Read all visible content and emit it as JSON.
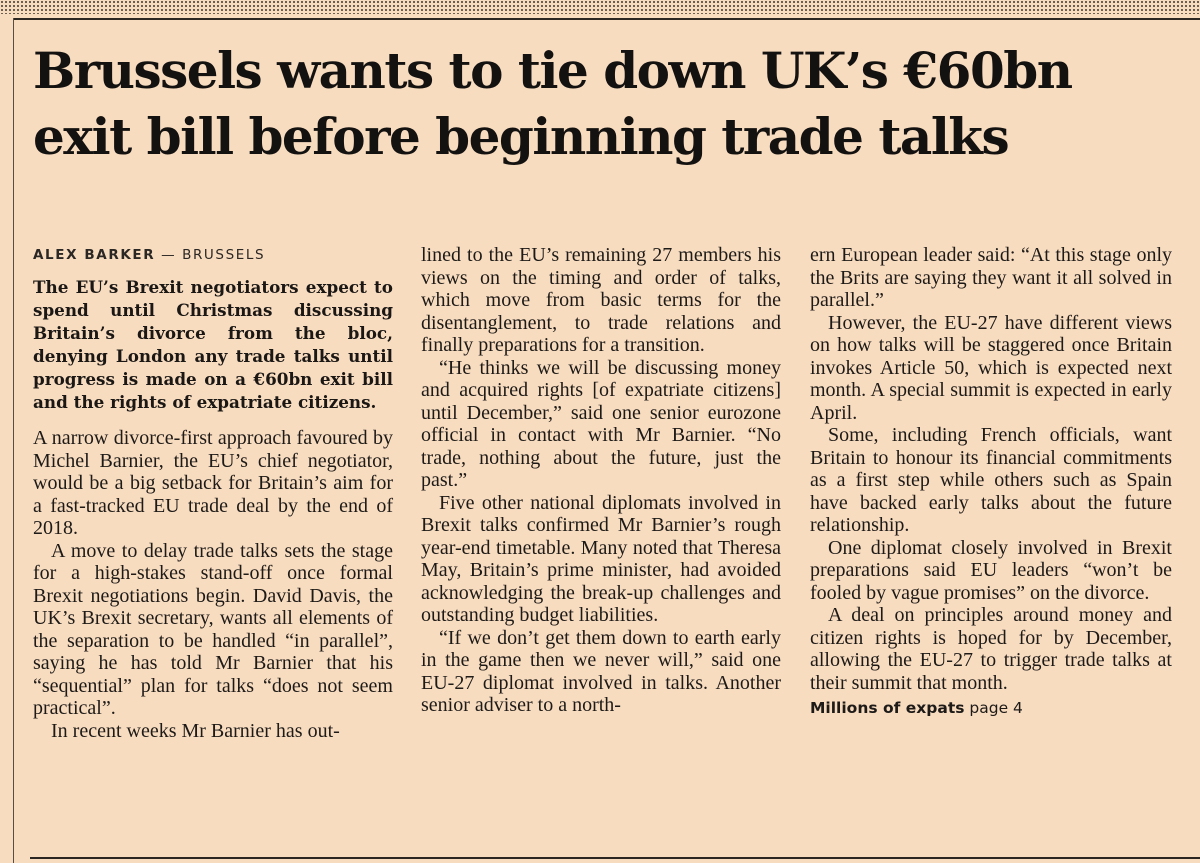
{
  "headline": "Brussels wants to tie down UK’s €60bn exit bill before beginning trade talks",
  "byline": {
    "author": "ALEX BARKER",
    "separator": " — ",
    "location": "BRUSSELS"
  },
  "lede": "The EU’s Brexit negotiators expect to spend until Christmas discussing Britain’s divorce from the bloc, denying London any trade talks until progress is made on a €60bn exit bill and the rights of expatriate citizens.",
  "paragraphs": [
    "A narrow divorce-first approach favoured by Michel Barnier, the EU’s chief negotiator, would be a big setback for Britain’s aim for a fast-tracked EU trade deal by the end of 2018.",
    "A move to delay trade talks sets the stage for a high-stakes stand-off once formal Brexit negotiations begin. David Davis, the UK’s Brexit secretary, wants all elements of the separation to be handled “in parallel”, saying he has told Mr Barnier that his “sequential” plan for talks “does not seem practical”.",
    "In recent weeks Mr Barnier has outlined to the EU’s remaining 27 members his views on the timing and order of talks, which move from basic terms for the disentanglement, to trade relations and finally preparations for a transition.",
    "“He thinks we will be discussing money and acquired rights [of expatriate citizens] until December,” said one senior eurozone official in contact with Mr Barnier. “No trade, nothing about the future, just the past.”",
    "Five other national diplomats involved in Brexit talks confirmed Mr Barnier’s rough year-end timetable. Many noted that Theresa May, Britain’s prime minister, had avoided acknowledging the break-up challenges and outstanding budget liabilities.",
    "“If we don’t get them down to earth early in the game then we never will,” said one EU-27 diplomat involved in talks. Another senior adviser to a northern European leader said: “At this stage only the Brits are saying they want it all solved in parallel.”",
    "However, the EU-27 have different views on how talks will be staggered once Britain invokes Article 50, which is expected next month. A special summit is expected in early April.",
    "Some, including French officials, want Britain to honour its financial commitments as a first step while others such as Spain have backed early talks about the future relationship.",
    "One diplomat closely involved in Brexit preparations said EU leaders “won’t be fooled by vague promises” on the divorce.",
    "A deal on principles around money and citizen rights is hoped for by December, allowing the EU-27 to trigger trade talks at their summit that month."
  ],
  "jump": {
    "label": "Millions of expats",
    "page": "page 4"
  }
}
